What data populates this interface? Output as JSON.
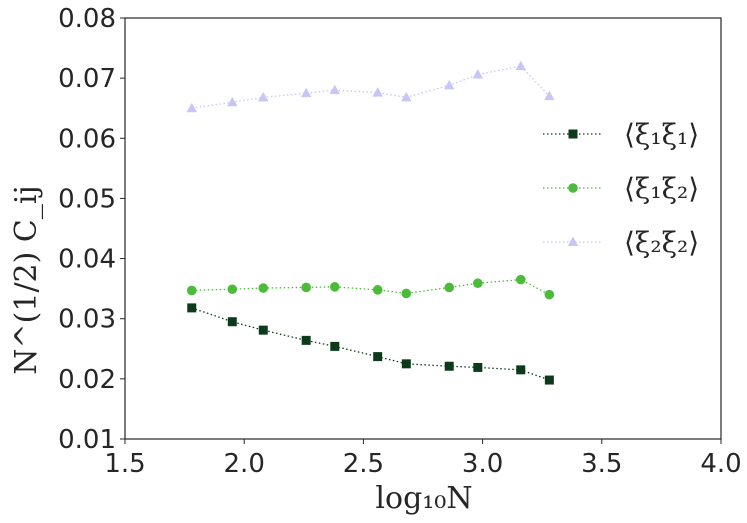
{
  "chart_data": {
    "type": "line",
    "title": "",
    "xlabel": "log₁₀N",
    "ylabel": "N^(1/2) C_ij",
    "xlim": [
      1.5,
      4.0
    ],
    "ylim": [
      0.01,
      0.08
    ],
    "x_ticks": [
      1.5,
      2.0,
      2.5,
      3.0,
      3.5,
      4.0
    ],
    "x_tick_labels": [
      "1.5",
      "2.0",
      "2.5",
      "3.0",
      "3.5",
      "4.0"
    ],
    "y_ticks": [
      0.01,
      0.02,
      0.03,
      0.04,
      0.05,
      0.06,
      0.07,
      0.08
    ],
    "y_tick_labels": [
      "0.01",
      "0.02",
      "0.03",
      "0.04",
      "0.05",
      "0.06",
      "0.07",
      "0.08"
    ],
    "grid": false,
    "legend_position": "right",
    "x": [
      1.78,
      1.95,
      2.08,
      2.26,
      2.38,
      2.56,
      2.68,
      2.86,
      2.98,
      3.16,
      3.28
    ],
    "series": [
      {
        "name": "⟨ξ₁ξ₁⟩",
        "color": "#0d3b1a",
        "marker": "square",
        "linestyle": "dotted",
        "values": [
          0.0318,
          0.0295,
          0.0281,
          0.0264,
          0.0254,
          0.0237,
          0.0225,
          0.0221,
          0.0219,
          0.0215,
          0.0198
        ]
      },
      {
        "name": "⟨ξ₁ξ₂⟩",
        "color": "#4cbb3a",
        "marker": "circle",
        "linestyle": "dotted",
        "values": [
          0.0347,
          0.0349,
          0.0351,
          0.0352,
          0.0353,
          0.0348,
          0.0342,
          0.0352,
          0.0359,
          0.0365,
          0.034
        ]
      },
      {
        "name": "⟨ξ₂ξ₂⟩",
        "color": "#c8c6f5",
        "marker": "triangle",
        "linestyle": "dotted",
        "values": [
          0.065,
          0.066,
          0.0668,
          0.0675,
          0.068,
          0.0676,
          0.0668,
          0.0688,
          0.0706,
          0.072,
          0.067
        ]
      }
    ]
  }
}
